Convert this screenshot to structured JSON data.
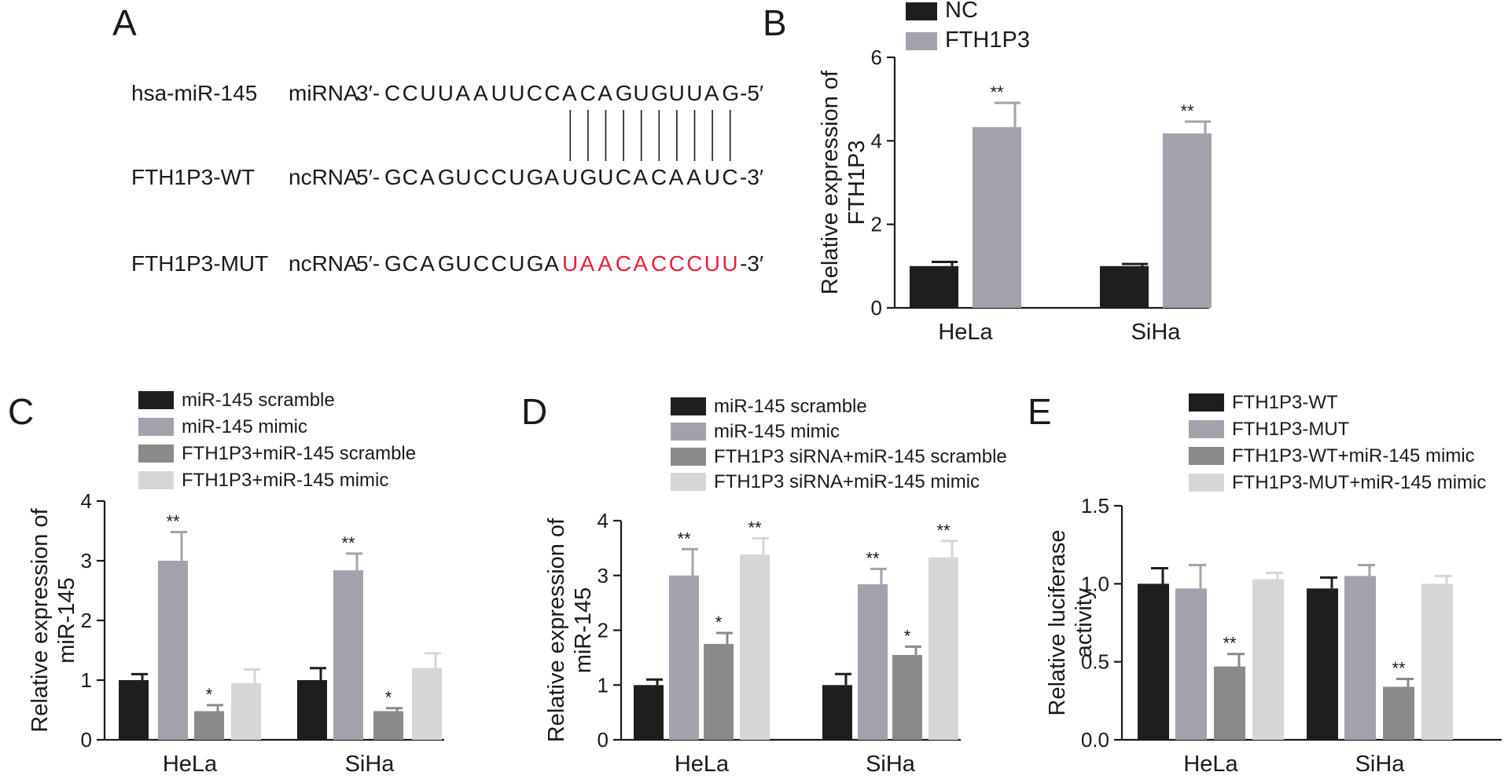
{
  "panel_labels": {
    "a": "A",
    "b": "B",
    "c": "C",
    "d": "D",
    "e": "E"
  },
  "alignment": {
    "rows": [
      {
        "name": "hsa-miR-145",
        "type": "miRNA",
        "prefix": "3′-",
        "sequence": "CCUUAAUUCCACAGUGUUAG",
        "suffix": "-5′",
        "highlight_start": -1,
        "highlight_end": -1
      },
      {
        "name": "FTH1P3-WT",
        "type": "ncRNA",
        "prefix": "5′-",
        "sequence": "GCAGUCCUGAUGUCACAAUC",
        "suffix": "-3′",
        "highlight_start": -1,
        "highlight_end": -1
      },
      {
        "name": "FTH1P3-MUT",
        "type": "ncRNA",
        "prefix": "5′-",
        "sequence": "GCAGUCCUGAUAACACCCUU",
        "suffix": "-3′",
        "highlight_start": 10,
        "highlight_end": 19
      }
    ],
    "pair_positions": [
      10,
      11,
      12,
      13,
      14,
      15,
      16,
      17,
      18,
      19
    ],
    "mutation_color": "#e8203a"
  },
  "chart_data": [
    {
      "panel": "B",
      "type": "bar",
      "categories": [
        "HeLa",
        "SiHa"
      ],
      "series": [
        {
          "name": "NC",
          "color": "#1e1e1e",
          "values": [
            1.0,
            1.0
          ],
          "errors": [
            0.1,
            0.05
          ],
          "sig": [
            "",
            ""
          ]
        },
        {
          "name": "FTH1P3",
          "color": "#a2a2ac",
          "values": [
            4.33,
            4.18
          ],
          "errors": [
            0.58,
            0.28
          ],
          "sig": [
            "**",
            "**"
          ]
        }
      ],
      "ylabel": [
        "Relative expression of",
        "FTH1P3"
      ],
      "ylim": [
        0,
        6
      ],
      "yticks": [
        0,
        2,
        4,
        6
      ],
      "legend": "top-left",
      "grid": false
    },
    {
      "panel": "C",
      "type": "bar",
      "categories": [
        "HeLa",
        "SiHa"
      ],
      "series": [
        {
          "name": "miR-145 scramble",
          "color": "#1e1e1e",
          "values": [
            1.0,
            1.0
          ],
          "errors": [
            0.1,
            0.2
          ],
          "sig": [
            "",
            ""
          ]
        },
        {
          "name": "miR-145 mimic",
          "color": "#a2a2ac",
          "values": [
            3.0,
            2.84
          ],
          "errors": [
            0.48,
            0.28
          ],
          "sig": [
            "**",
            "**"
          ]
        },
        {
          "name": "FTH1P3+miR-145 scramble",
          "color": "#8a8a8a",
          "values": [
            0.48,
            0.48
          ],
          "errors": [
            0.1,
            0.05
          ],
          "sig": [
            "*",
            "*"
          ]
        },
        {
          "name": "FTH1P3+miR-145 mimic",
          "color": "#d6d6d6",
          "values": [
            0.95,
            1.2
          ],
          "errors": [
            0.23,
            0.25
          ],
          "sig": [
            "",
            ""
          ]
        }
      ],
      "ylabel": [
        "Relative expression of",
        "miR-145"
      ],
      "ylim": [
        0,
        4
      ],
      "yticks": [
        0,
        1,
        2,
        3,
        4
      ],
      "legend": "top",
      "grid": false
    },
    {
      "panel": "D",
      "type": "bar",
      "categories": [
        "HeLa",
        "SiHa"
      ],
      "series": [
        {
          "name": "miR-145 scramble",
          "color": "#1e1e1e",
          "values": [
            1.0,
            1.0
          ],
          "errors": [
            0.1,
            0.2
          ],
          "sig": [
            "",
            ""
          ]
        },
        {
          "name": "miR-145 mimic",
          "color": "#a2a2ac",
          "values": [
            3.0,
            2.84
          ],
          "errors": [
            0.48,
            0.28
          ],
          "sig": [
            "**",
            "**"
          ]
        },
        {
          "name": "FTH1P3 siRNA+miR-145 scramble",
          "color": "#8a8a8a",
          "values": [
            1.75,
            1.55
          ],
          "errors": [
            0.2,
            0.15
          ],
          "sig": [
            "*",
            "*"
          ]
        },
        {
          "name": "FTH1P3 siRNA+miR-145 mimic",
          "color": "#d6d6d6",
          "values": [
            3.38,
            3.33
          ],
          "errors": [
            0.3,
            0.3
          ],
          "sig": [
            "**",
            "**"
          ]
        }
      ],
      "ylabel": [
        "Relative expression of",
        "miR-145"
      ],
      "ylim": [
        0,
        4
      ],
      "yticks": [
        0,
        1,
        2,
        3,
        4
      ],
      "legend": "top",
      "grid": false
    },
    {
      "panel": "E",
      "type": "bar",
      "categories": [
        "HeLa",
        "SiHa"
      ],
      "series": [
        {
          "name": "FTH1P3-WT",
          "color": "#1e1e1e",
          "values": [
            1.0,
            0.97
          ],
          "errors": [
            0.1,
            0.07
          ],
          "sig": [
            "",
            ""
          ]
        },
        {
          "name": "FTH1P3-MUT",
          "color": "#a2a2ac",
          "values": [
            0.97,
            1.05
          ],
          "errors": [
            0.15,
            0.07
          ],
          "sig": [
            "",
            ""
          ]
        },
        {
          "name": "FTH1P3-WT+miR-145 mimic",
          "color": "#8a8a8a",
          "values": [
            0.47,
            0.34
          ],
          "errors": [
            0.08,
            0.05
          ],
          "sig": [
            "**",
            "**"
          ]
        },
        {
          "name": "FTH1P3-MUT+miR-145 mimic",
          "color": "#d6d6d6",
          "values": [
            1.03,
            1.0
          ],
          "errors": [
            0.04,
            0.05
          ],
          "sig": [
            "",
            ""
          ]
        }
      ],
      "ylabel": [
        "Relative luciferase",
        "activity"
      ],
      "ylim": [
        0,
        1.5
      ],
      "yticks": [
        "0.0",
        "0.5",
        "1.0",
        "1.5"
      ],
      "legend": "top",
      "grid": false
    }
  ]
}
